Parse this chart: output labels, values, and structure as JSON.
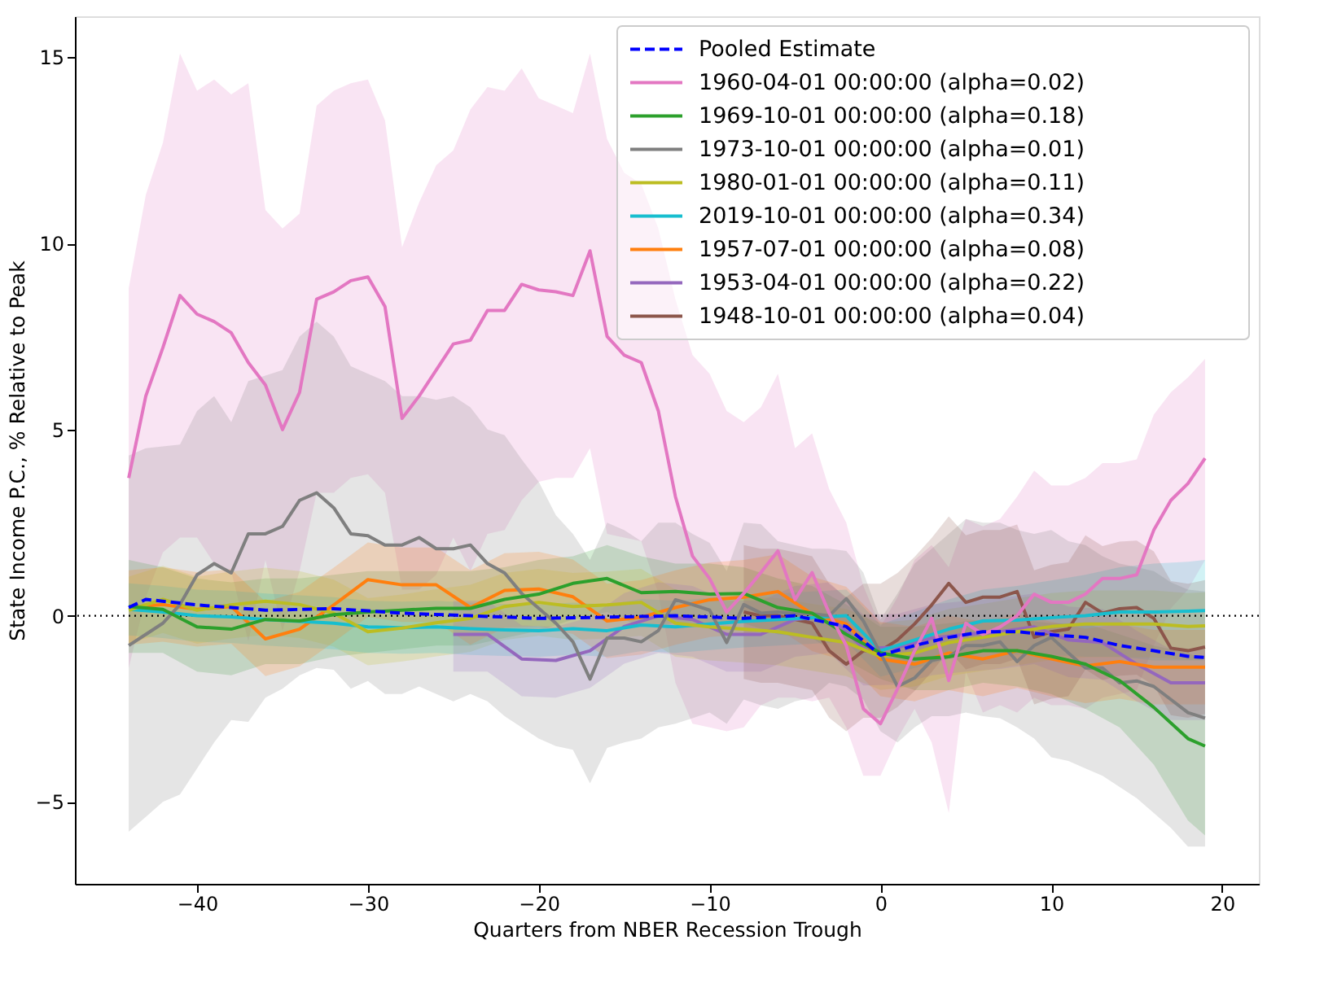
{
  "chart_data": {
    "type": "line",
    "xlabel": "Quarters from NBER Recession Trough",
    "ylabel": "State Income P.C., % Relative to Peak",
    "xlim": [
      -47.15,
      22.15
    ],
    "ylim": [
      -7.2,
      16.1
    ],
    "xticks": [
      -40,
      -30,
      -20,
      -10,
      0,
      10,
      20
    ],
    "yticks": [
      -5,
      0,
      5,
      10,
      15
    ],
    "grid": false,
    "legend": "top right",
    "ref_lines": [
      {
        "axis": "y",
        "value": 0,
        "color": "#000000",
        "line_style": "dotted"
      }
    ],
    "series": [
      {
        "name": "Pooled Estimate",
        "color": "#0000ff",
        "line_style": "dashed",
        "x": [
          -44,
          -43,
          -40,
          -36,
          -32,
          -28,
          -24,
          -20,
          -16,
          -12,
          -8,
          -5,
          -2,
          0,
          2,
          4,
          6,
          8,
          10,
          12,
          14,
          16,
          18,
          19
        ],
        "values": [
          0.22,
          0.44,
          0.29,
          0.15,
          0.19,
          0.07,
          0.0,
          -0.07,
          -0.04,
          0.0,
          -0.07,
          0.0,
          -0.29,
          -1.06,
          -0.8,
          -0.58,
          -0.43,
          -0.43,
          -0.51,
          -0.58,
          -0.8,
          -0.94,
          -1.09,
          -1.12
        ]
      },
      {
        "name": "1960-04-01 00:00:00 (alpha=0.02)",
        "color": "#e377c2",
        "line_style": "solid",
        "x": [
          -44,
          -43,
          -42,
          -41,
          -40,
          -39,
          -38,
          -37,
          -36,
          -35,
          -34,
          -33,
          -32,
          -31,
          -30,
          -29,
          -28,
          -27,
          -26,
          -25,
          -24,
          -23,
          -22,
          -21,
          -20,
          -19,
          -18,
          -17,
          -16,
          -15,
          -14,
          -13,
          -12,
          -11,
          -10,
          -9,
          -8,
          -7,
          -6,
          -5,
          -4,
          -3,
          -2,
          -1,
          0,
          1,
          2,
          3,
          4,
          5,
          6,
          7,
          8,
          9,
          10,
          11,
          12,
          13,
          14,
          15,
          16,
          17,
          18,
          19
        ],
        "values": [
          3.7,
          5.9,
          7.2,
          8.6,
          8.1,
          7.9,
          7.6,
          6.8,
          6.2,
          5.0,
          6.0,
          8.5,
          8.7,
          9.0,
          9.1,
          8.3,
          5.3,
          5.9,
          6.6,
          7.3,
          7.4,
          8.2,
          8.2,
          8.9,
          8.75,
          8.7,
          8.6,
          9.8,
          7.5,
          7.0,
          6.8,
          5.5,
          3.2,
          1.6,
          1.0,
          0.1,
          0.6,
          1.16,
          1.74,
          0.43,
          1.16,
          0.07,
          -0.8,
          -2.5,
          -2.9,
          -1.96,
          -0.94,
          -0.07,
          -1.74,
          -0.2,
          -0.5,
          -0.3,
          0.0,
          0.58,
          0.36,
          0.36,
          0.58,
          1.0,
          1.0,
          1.1,
          2.3,
          3.1,
          3.55,
          4.23
        ],
        "upper": [
          8.8,
          11.3,
          12.7,
          15.1,
          14.1,
          14.4,
          14.0,
          14.3,
          10.9,
          10.4,
          10.8,
          13.7,
          14.1,
          14.3,
          14.4,
          13.3,
          9.9,
          11.1,
          12.1,
          12.5,
          13.6,
          14.2,
          14.1,
          14.7,
          13.9,
          13.7,
          13.5,
          15.1,
          12.8,
          11.9,
          11.6,
          10.4,
          8.5,
          7.0,
          6.5,
          5.5,
          5.2,
          5.6,
          6.5,
          4.5,
          4.9,
          3.4,
          2.5,
          0.8,
          -0.3,
          0.5,
          1.5,
          1.9,
          1.3,
          2.6,
          2.4,
          2.6,
          3.2,
          3.9,
          3.5,
          3.5,
          3.7,
          4.1,
          4.1,
          4.2,
          5.4,
          6.0,
          6.4,
          6.9
        ],
        "lower": [
          -1.4,
          0.5,
          1.7,
          2.1,
          2.1,
          1.4,
          1.2,
          -0.7,
          1.5,
          -0.4,
          1.2,
          3.3,
          3.3,
          3.7,
          3.8,
          3.3,
          0.7,
          0.7,
          1.1,
          2.1,
          1.2,
          2.2,
          2.3,
          3.1,
          3.6,
          3.7,
          3.7,
          4.5,
          2.2,
          2.1,
          2.0,
          0.6,
          -1.8,
          -2.9,
          -3.0,
          -3.1,
          -3.0,
          -2.4,
          -2.2,
          -2.2,
          -2.3,
          -2.2,
          -3.0,
          -4.3,
          -4.3,
          -3.3,
          -2.5,
          -3.4,
          -5.3,
          -1.5,
          -2.6,
          -2.4,
          -2.6,
          -2.2,
          -2.4,
          -2.4,
          -2.5,
          -2.2,
          -2.1,
          -2.0,
          -0.8,
          0.2,
          0.7,
          1.5
        ]
      },
      {
        "name": "1969-10-01 00:00:00 (alpha=0.18)",
        "color": "#2ca02c",
        "line_style": "solid",
        "x": [
          -44,
          -42,
          -40,
          -38,
          -36,
          -34,
          -32,
          -30,
          -28,
          -26,
          -24,
          -22,
          -20,
          -18,
          -16,
          -14,
          -12,
          -10,
          -8,
          -6,
          -4,
          -2,
          0,
          2,
          4,
          6,
          8,
          10,
          12,
          14,
          16,
          18,
          19
        ],
        "values": [
          0.25,
          0.17,
          -0.3,
          -0.36,
          -0.1,
          -0.14,
          0.03,
          0.1,
          0.15,
          0.2,
          0.2,
          0.44,
          0.58,
          0.87,
          1.0,
          0.62,
          0.65,
          0.58,
          0.6,
          0.22,
          0.07,
          -0.5,
          -1.0,
          -1.16,
          -1.1,
          -0.94,
          -0.94,
          -1.09,
          -1.3,
          -1.74,
          -2.46,
          -3.3,
          -3.5
        ],
        "upper": [
          1.5,
          1.3,
          1.0,
          0.9,
          1.0,
          1.0,
          1.1,
          1.2,
          1.2,
          1.2,
          1.2,
          1.3,
          1.5,
          1.6,
          1.9,
          1.6,
          1.4,
          1.4,
          1.3,
          1.0,
          0.8,
          0.3,
          -0.3,
          -0.3,
          -0.2,
          -0.1,
          -0.1,
          -0.2,
          -0.2,
          -0.5,
          -0.8,
          -1.0,
          -1.2
        ],
        "lower": [
          -1.0,
          -1.0,
          -1.5,
          -1.6,
          -1.3,
          -1.3,
          -1.1,
          -1.0,
          -0.9,
          -0.8,
          -0.8,
          -0.6,
          -0.4,
          -0.1,
          0.1,
          -0.3,
          -0.2,
          -0.2,
          -0.2,
          -0.5,
          -0.6,
          -1.2,
          -1.7,
          -2.0,
          -2.0,
          -1.8,
          -1.9,
          -2.1,
          -2.5,
          -3.0,
          -4.0,
          -5.5,
          -5.9
        ]
      },
      {
        "name": "1973-10-01 00:00:00 (alpha=0.01)",
        "color": "#7f7f7f",
        "line_style": "solid",
        "x": [
          -44,
          -43,
          -42,
          -41,
          -40,
          -39,
          -38,
          -37,
          -36,
          -35,
          -34,
          -33,
          -32,
          -31,
          -30,
          -29,
          -28,
          -27,
          -26,
          -25,
          -24,
          -23,
          -22,
          -21,
          -20,
          -19,
          -18,
          -17,
          -16,
          -15,
          -14,
          -13,
          -12,
          -11,
          -10,
          -9,
          -8,
          -7,
          -6,
          -5,
          -4,
          -3,
          -2,
          -1,
          0,
          1,
          2,
          3,
          4,
          5,
          6,
          7,
          8,
          9,
          10,
          11,
          12,
          13,
          14,
          15,
          16,
          17,
          18,
          19
        ],
        "values": [
          -0.8,
          -0.5,
          -0.2,
          0.3,
          1.1,
          1.4,
          1.15,
          2.2,
          2.2,
          2.4,
          3.1,
          3.3,
          2.9,
          2.2,
          2.15,
          1.9,
          1.9,
          2.1,
          1.8,
          1.8,
          1.9,
          1.4,
          1.15,
          0.6,
          0.2,
          -0.2,
          -0.7,
          -1.7,
          -0.6,
          -0.6,
          -0.7,
          -0.4,
          0.43,
          0.3,
          0.15,
          -0.72,
          0.3,
          0.07,
          0.1,
          0.05,
          0.05,
          0.0,
          0.46,
          -0.14,
          -1.0,
          -1.9,
          -1.67,
          -1.2,
          -1.1,
          -0.8,
          -0.8,
          -0.7,
          -1.23,
          -0.8,
          -0.58,
          -1.0,
          -1.4,
          -1.4,
          -1.8,
          -1.75,
          -1.9,
          -2.25,
          -2.6,
          -2.75
        ],
        "upper": [
          4.3,
          4.5,
          4.55,
          4.6,
          5.5,
          5.9,
          5.2,
          6.3,
          6.45,
          6.6,
          7.5,
          7.9,
          7.5,
          6.7,
          6.5,
          6.3,
          5.9,
          5.9,
          5.8,
          5.9,
          5.6,
          5.0,
          4.85,
          4.2,
          3.6,
          2.7,
          2.2,
          1.5,
          2.5,
          2.3,
          2.0,
          2.5,
          2.5,
          2.2,
          1.96,
          1.2,
          2.5,
          2.46,
          2.0,
          1.9,
          1.8,
          1.8,
          1.74,
          1.16,
          -0.1,
          0.6,
          1.4,
          1.8,
          2.2,
          2.6,
          2.5,
          2.5,
          2.3,
          2.2,
          2.3,
          2.0,
          1.9,
          1.6,
          1.4,
          1.3,
          1.2,
          0.9,
          0.7,
          0.65
        ],
        "lower": [
          -5.8,
          -5.4,
          -5.0,
          -4.8,
          -4.1,
          -3.4,
          -2.8,
          -2.85,
          -2.2,
          -1.96,
          -1.6,
          -1.4,
          -1.45,
          -1.96,
          -1.75,
          -2.1,
          -2.1,
          -1.9,
          -2.1,
          -2.3,
          -2.1,
          -2.3,
          -2.7,
          -3.0,
          -3.3,
          -3.5,
          -3.6,
          -4.5,
          -3.55,
          -3.4,
          -3.3,
          -3.0,
          -2.9,
          -2.75,
          -2.6,
          -2.9,
          -2.25,
          -2.4,
          -2.5,
          -2.3,
          -2.2,
          -1.8,
          -1.9,
          -2.25,
          -3.1,
          -3.4,
          -3.0,
          -2.7,
          -2.7,
          -2.6,
          -2.7,
          -2.75,
          -3.0,
          -3.3,
          -3.8,
          -3.9,
          -4.1,
          -4.3,
          -4.6,
          -4.9,
          -5.3,
          -5.7,
          -6.2,
          -6.2
        ]
      },
      {
        "name": "1980-01-01 00:00:00 (alpha=0.11)",
        "color": "#bcbd22",
        "line_style": "solid",
        "x": [
          -44,
          -42,
          -40,
          -38,
          -36,
          -34,
          -32,
          -30,
          -28,
          -26,
          -24,
          -22,
          -20,
          -18,
          -16,
          -14,
          -12,
          -10,
          -8,
          -6,
          -4,
          -2,
          0,
          2,
          4,
          6,
          8,
          10,
          12,
          14,
          16,
          18,
          19
        ],
        "values": [
          0.15,
          0.44,
          0.15,
          0.29,
          0.39,
          0.3,
          0.07,
          -0.43,
          -0.33,
          -0.19,
          -0.07,
          0.25,
          0.36,
          0.25,
          0.29,
          0.36,
          -0.2,
          -0.3,
          -0.36,
          -0.43,
          -0.58,
          -0.72,
          -1.09,
          -1.0,
          -0.72,
          -0.58,
          -0.43,
          -0.29,
          -0.22,
          -0.22,
          -0.22,
          -0.29,
          -0.27
        ],
        "upper": [
          1.05,
          1.34,
          1.05,
          1.19,
          1.29,
          1.2,
          0.97,
          0.47,
          0.57,
          0.71,
          0.83,
          1.15,
          1.26,
          1.15,
          1.19,
          1.26,
          0.7,
          0.6,
          0.54,
          0.47,
          0.32,
          0.18,
          -0.19,
          -0.1,
          0.18,
          0.32,
          0.47,
          0.61,
          0.68,
          0.68,
          0.68,
          0.61,
          0.63
        ],
        "lower": [
          -0.75,
          -0.46,
          -0.75,
          -0.61,
          -0.51,
          -0.6,
          -0.83,
          -1.33,
          -1.23,
          -1.09,
          -0.97,
          -0.65,
          -0.54,
          -0.65,
          -0.61,
          -0.54,
          -1.1,
          -1.2,
          -1.26,
          -1.33,
          -1.48,
          -1.62,
          -1.99,
          -1.9,
          -1.62,
          -1.48,
          -1.33,
          -1.19,
          -1.12,
          -1.12,
          -1.12,
          -1.19,
          -1.17
        ]
      },
      {
        "name": "2019-10-01 00:00:00 (alpha=0.34)",
        "color": "#17becf",
        "line_style": "solid",
        "x": [
          -44,
          -42,
          -40,
          -38,
          -36,
          -34,
          -32,
          -30,
          -28,
          -26,
          -24,
          -22,
          -20,
          -18,
          -16,
          -14,
          -12,
          -10,
          -8,
          -6,
          -4,
          -2,
          0,
          2,
          4,
          6,
          8,
          10,
          12,
          14,
          16,
          18,
          19
        ],
        "values": [
          0.17,
          0.1,
          0.0,
          -0.03,
          -0.1,
          -0.15,
          -0.2,
          -0.3,
          -0.32,
          -0.3,
          -0.35,
          -0.38,
          -0.4,
          -0.35,
          -0.4,
          -0.25,
          -0.3,
          -0.22,
          -0.15,
          -0.1,
          -0.05,
          0.0,
          -0.94,
          -0.65,
          -0.36,
          -0.14,
          -0.12,
          -0.05,
          0.0,
          0.1,
          0.1,
          0.12,
          0.14
        ],
        "upper": [
          0.87,
          0.8,
          0.7,
          0.67,
          0.6,
          0.55,
          0.5,
          0.4,
          0.38,
          0.4,
          0.35,
          0.32,
          0.3,
          0.35,
          0.3,
          0.45,
          0.4,
          0.48,
          0.55,
          0.6,
          0.65,
          0.7,
          -0.24,
          0.1,
          0.44,
          0.7,
          0.8,
          0.95,
          1.1,
          1.3,
          1.4,
          1.45,
          1.5
        ],
        "lower": [
          -0.53,
          -0.6,
          -0.7,
          -0.73,
          -0.8,
          -0.85,
          -0.9,
          -1.0,
          -1.02,
          -1.0,
          -1.05,
          -1.08,
          -1.1,
          -1.05,
          -1.1,
          -0.95,
          -1.0,
          -0.92,
          -0.85,
          -0.8,
          -0.75,
          -0.7,
          -1.64,
          -1.4,
          -1.16,
          -0.98,
          -1.04,
          -1.05,
          -1.1,
          -1.1,
          -1.2,
          -1.2,
          -1.2
        ]
      },
      {
        "name": "1957-07-01 00:00:00 (alpha=0.08)",
        "color": "#ff7f0e",
        "line_style": "solid",
        "x": [
          -44,
          -42,
          -40,
          -38,
          -36,
          -34,
          -32,
          -30,
          -28,
          -26,
          -24,
          -22,
          -20,
          -18,
          -16,
          -14,
          -12,
          -10,
          -8,
          -6,
          -4,
          -2,
          0,
          2,
          4,
          6,
          8,
          10,
          12,
          14,
          16,
          18,
          19
        ],
        "values": [
          0.22,
          0.3,
          0.17,
          0.25,
          -0.62,
          -0.36,
          0.29,
          0.97,
          0.83,
          0.83,
          0.22,
          0.68,
          0.72,
          0.51,
          -0.14,
          -0.04,
          0.22,
          0.43,
          0.5,
          0.65,
          0.05,
          -0.22,
          -1.16,
          -1.3,
          -1.0,
          -1.16,
          -0.94,
          -1.16,
          -1.35,
          -1.23,
          -1.38,
          -1.38,
          -1.38
        ],
        "upper": [
          1.22,
          1.3,
          1.17,
          1.25,
          0.38,
          0.64,
          1.29,
          1.97,
          1.83,
          1.83,
          1.22,
          1.68,
          1.72,
          1.51,
          0.86,
          0.96,
          1.22,
          1.43,
          1.5,
          1.65,
          1.05,
          0.78,
          -0.16,
          -0.3,
          0.0,
          -0.16,
          0.06,
          -0.16,
          -0.35,
          -0.23,
          -0.38,
          -0.38,
          -0.38
        ],
        "lower": [
          -0.78,
          -0.7,
          -0.83,
          -0.75,
          -1.62,
          -1.36,
          -0.71,
          -0.03,
          -0.17,
          -0.17,
          -0.78,
          -0.32,
          -0.28,
          -0.49,
          -1.14,
          -1.04,
          -0.78,
          -0.57,
          -0.5,
          -0.35,
          -0.95,
          -1.22,
          -2.16,
          -2.3,
          -2.0,
          -2.16,
          -1.94,
          -2.16,
          -2.35,
          -2.23,
          -2.38,
          -2.38,
          -2.38
        ]
      },
      {
        "name": "1953-04-01 00:00:00 (alpha=0.22)",
        "color": "#9467bd",
        "line_style": "solid",
        "x": [
          -25,
          -23,
          -21,
          -19,
          -17,
          -15,
          -13,
          -11,
          -9,
          -7,
          -5,
          -3,
          -1,
          1,
          3,
          5,
          7,
          9,
          11,
          13,
          15,
          17,
          19
        ],
        "values": [
          -0.5,
          -0.5,
          -1.16,
          -1.2,
          -0.94,
          -0.29,
          0.0,
          -0.1,
          -0.5,
          -0.5,
          -0.1,
          0.0,
          -0.87,
          -0.85,
          -0.6,
          -0.5,
          -0.43,
          -0.3,
          -0.65,
          -0.72,
          -1.3,
          -1.8,
          -1.8
        ],
        "upper": [
          0.4,
          0.4,
          -0.26,
          -0.3,
          -0.04,
          0.61,
          0.9,
          0.8,
          0.4,
          0.4,
          0.8,
          0.9,
          0.03,
          0.05,
          0.3,
          0.4,
          0.47,
          0.6,
          0.25,
          0.18,
          -0.4,
          -0.9,
          -0.9
        ],
        "lower": [
          -1.5,
          -1.5,
          -2.16,
          -2.2,
          -1.94,
          -1.29,
          -1.0,
          -1.1,
          -1.5,
          -1.5,
          -1.1,
          -1.0,
          -1.87,
          -1.85,
          -1.6,
          -1.5,
          -1.43,
          -1.3,
          -1.65,
          -1.72,
          -2.3,
          -2.8,
          -2.8
        ]
      },
      {
        "name": "1948-10-01 00:00:00 (alpha=0.04)",
        "color": "#8c564b",
        "line_style": "solid",
        "x": [
          -8,
          -7,
          -6,
          -5,
          -4,
          -3,
          -2,
          -1,
          0,
          1,
          2,
          3,
          4,
          5,
          6,
          7,
          8,
          9,
          10,
          11,
          12,
          13,
          14,
          15,
          16,
          17,
          18,
          19
        ],
        "values": [
          0.1,
          0.0,
          0.0,
          -0.1,
          -0.2,
          -0.94,
          -1.3,
          -0.94,
          -0.94,
          -0.65,
          -0.22,
          0.29,
          0.87,
          0.36,
          0.5,
          0.5,
          0.65,
          -0.58,
          -0.43,
          -0.36,
          0.36,
          0.07,
          0.19,
          0.22,
          -0.07,
          -0.87,
          -0.94,
          -0.84
        ],
        "upper": [
          1.9,
          1.8,
          1.8,
          1.7,
          1.6,
          0.86,
          0.5,
          0.86,
          0.86,
          1.15,
          1.58,
          2.09,
          2.67,
          2.16,
          2.3,
          2.3,
          2.45,
          1.22,
          1.37,
          1.44,
          2.16,
          1.87,
          1.99,
          2.02,
          1.73,
          0.93,
          0.86,
          0.96
        ],
        "lower": [
          -1.7,
          -1.8,
          -1.8,
          -1.9,
          -2.0,
          -2.74,
          -3.1,
          -2.74,
          -2.74,
          -2.45,
          -2.02,
          -1.51,
          -0.93,
          -1.44,
          -1.3,
          -1.3,
          -1.15,
          -2.38,
          -2.23,
          -2.16,
          -1.44,
          -1.73,
          -1.61,
          -1.58,
          -1.87,
          -2.67,
          -2.74,
          -2.64
        ]
      }
    ]
  }
}
